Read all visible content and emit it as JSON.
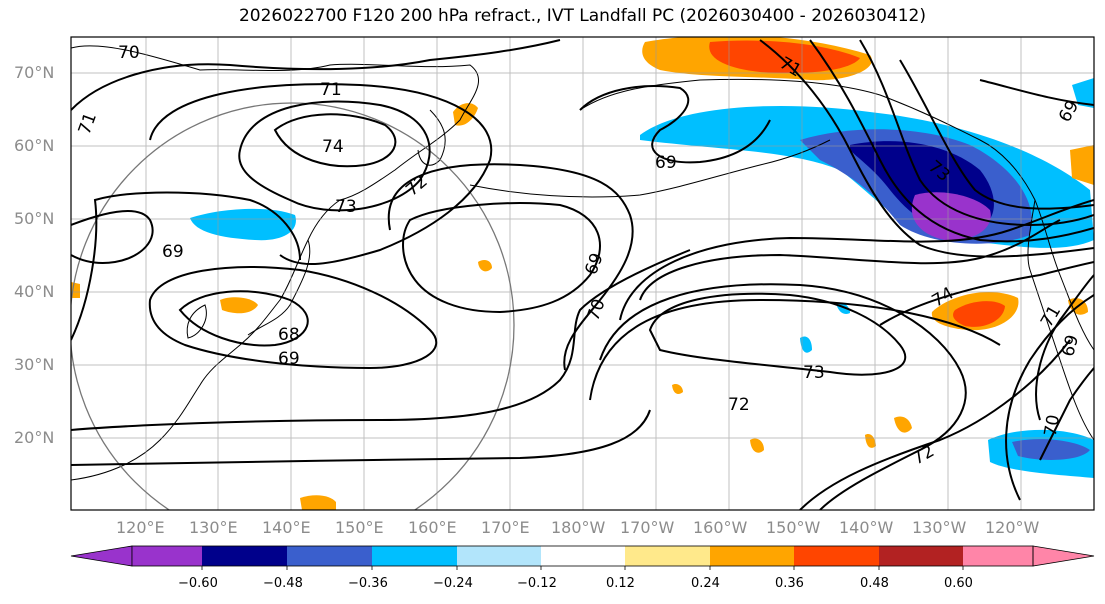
{
  "title": "2026022700 F120 200 hPa refract., IVT Landfall PC (2026030400 - 2026030412)",
  "lat_labels": [
    "70°N",
    "60°N",
    "50°N",
    "40°N",
    "30°N",
    "20°N"
  ],
  "lon_labels": [
    "120°E",
    "130°E",
    "140°E",
    "150°E",
    "160°E",
    "170°E",
    "180°W",
    "170°W",
    "160°W",
    "150°W",
    "140°W",
    "130°W",
    "120°W"
  ],
  "contour_labels": [
    "70",
    "71",
    "71",
    "74",
    "73",
    "72",
    "73",
    "69",
    "69",
    "68",
    "69",
    "69",
    "70",
    "69",
    "71",
    "74",
    "73",
    "72",
    "72",
    "71",
    "69",
    "70"
  ],
  "colorbar": {
    "ticks": [
      "−0.60",
      "−0.48",
      "−0.36",
      "−0.24",
      "−0.12",
      "0.12",
      "0.24",
      "0.36",
      "0.48",
      "0.60"
    ],
    "colors": [
      "#9933cc",
      "#00008b",
      "#3a5fcd",
      "#00bfff",
      "#b2e5fb",
      "#ffffff",
      "#ffe98b",
      "#ffa500",
      "#ff4500",
      "#b22222",
      "#ff85a8"
    ]
  }
}
